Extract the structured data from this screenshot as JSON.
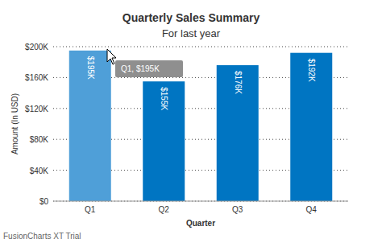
{
  "chart_data": {
    "type": "bar",
    "title": "Quarterly Sales Summary",
    "subtitle": "For last year",
    "x_label": "Quarter",
    "y_label": "Amount (In USD)",
    "categories": [
      "Q1",
      "Q2",
      "Q3",
      "Q4"
    ],
    "values": [
      195000,
      155000,
      176000,
      192000
    ],
    "value_labels": [
      "$195K",
      "$155K",
      "$176K",
      "$192K"
    ],
    "colors": [
      "#4f9fd8",
      "#0075c2",
      "#0075c2",
      "#0075c2"
    ],
    "data_labels": true,
    "ylim": [
      0,
      200000
    ],
    "yticks": [
      {
        "value": 0,
        "label": "$0"
      },
      {
        "value": 40000,
        "label": "$40K"
      },
      {
        "value": 80000,
        "label": "$80K"
      },
      {
        "value": 120000,
        "label": "$120K"
      },
      {
        "value": 160000,
        "label": "$160K"
      },
      {
        "value": 200000,
        "label": "$200K"
      }
    ],
    "grid": true,
    "annotations": [
      "Q1, $195K",
      "FusionCharts XT Trial"
    ]
  }
}
